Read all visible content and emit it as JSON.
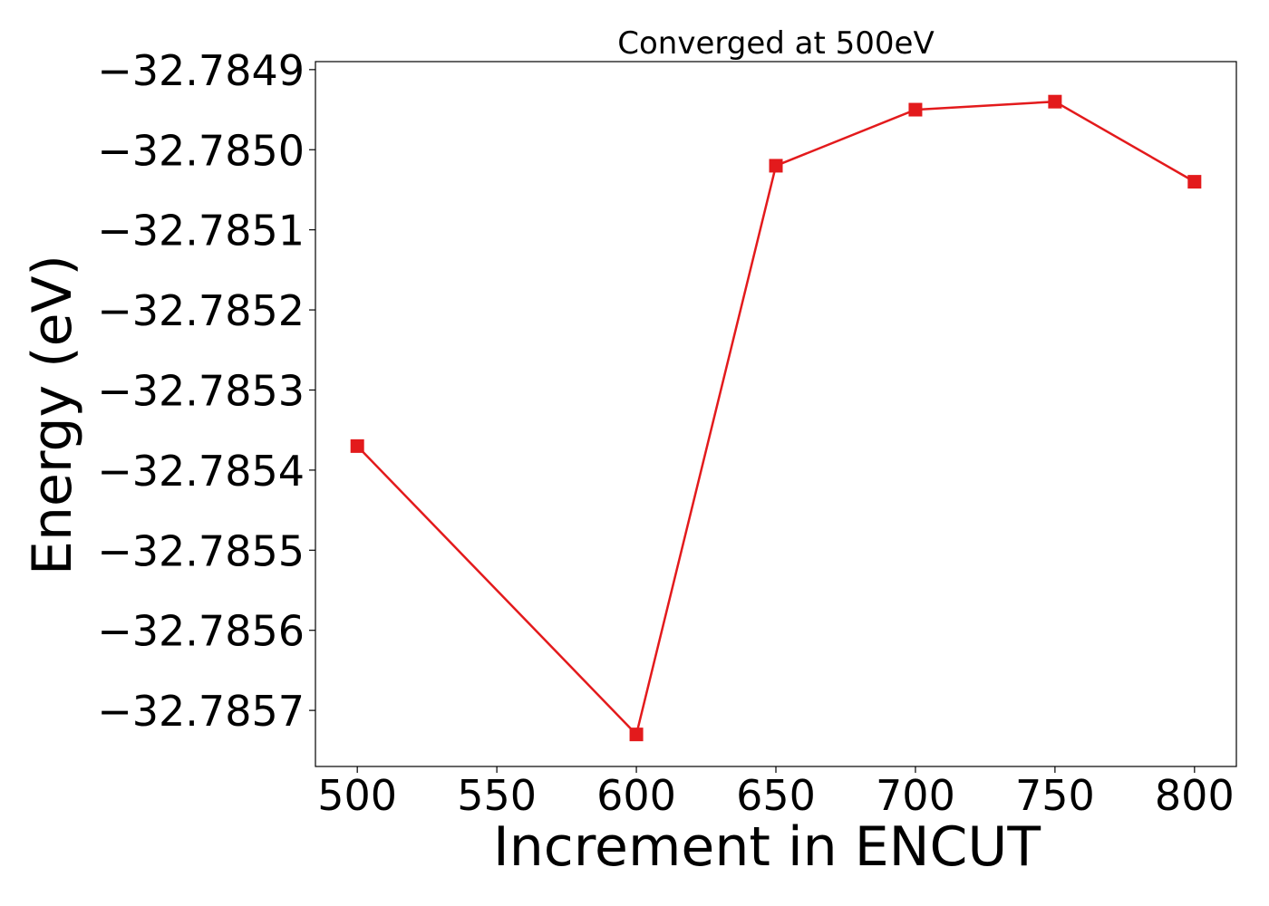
{
  "chart_data": {
    "type": "line",
    "title": "Converged at 500eV",
    "xlabel": "Increment in ENCUT",
    "ylabel": "Energy (eV)",
    "x": [
      500,
      600,
      650,
      700,
      750,
      800
    ],
    "series": [
      {
        "name": "",
        "color": "#e31a1c",
        "marker": "square",
        "values": [
          -32.78537,
          -32.78573,
          -32.78502,
          -32.78495,
          -32.78494,
          -32.78504
        ]
      }
    ],
    "xlim": [
      485,
      815
    ],
    "ylim": [
      -32.78577,
      -32.78489
    ],
    "xticks": [
      500,
      550,
      600,
      650,
      700,
      750,
      800
    ],
    "xtick_labels": [
      "500",
      "550",
      "600",
      "650",
      "700",
      "750",
      "800"
    ],
    "yticks": [
      -32.7849,
      -32.785,
      -32.7851,
      -32.7852,
      -32.7853,
      -32.7854,
      -32.7855,
      -32.7856,
      -32.7857
    ],
    "ytick_labels": [
      "−32.7849",
      "−32.7850",
      "−32.7851",
      "−32.7852",
      "−32.7853",
      "−32.7854",
      "−32.7855",
      "−32.7856",
      "−32.7857"
    ],
    "grid": false,
    "legend": "none"
  }
}
